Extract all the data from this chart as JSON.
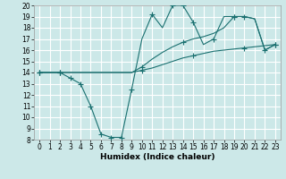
{
  "bg_color": "#cce8e8",
  "grid_color": "#ffffff",
  "line_color": "#1a7070",
  "xlabel": "Humidex (Indice chaleur)",
  "xlim": [
    -0.5,
    23.5
  ],
  "ylim": [
    8,
    20
  ],
  "xticks": [
    0,
    1,
    2,
    3,
    4,
    5,
    6,
    7,
    8,
    9,
    10,
    11,
    12,
    13,
    14,
    15,
    16,
    17,
    18,
    19,
    20,
    21,
    22,
    23
  ],
  "yticks": [
    8,
    9,
    10,
    11,
    12,
    13,
    14,
    15,
    16,
    17,
    18,
    19,
    20
  ],
  "line_bottom": {
    "x": [
      0,
      1,
      2,
      3,
      4,
      5,
      6,
      7,
      8,
      9,
      10,
      11,
      12,
      13,
      14,
      15,
      16,
      17,
      18,
      19,
      20,
      21,
      22,
      23
    ],
    "y": [
      14,
      14,
      14,
      14,
      14,
      14,
      14,
      14,
      14,
      14,
      14.2,
      14.4,
      14.7,
      15.0,
      15.3,
      15.5,
      15.7,
      15.9,
      16.0,
      16.1,
      16.2,
      16.3,
      16.4,
      16.5
    ],
    "markers_x": [
      0,
      2,
      10,
      15,
      20,
      23
    ],
    "markers_y": [
      14,
      14,
      14.2,
      15.5,
      16.2,
      16.5
    ]
  },
  "line_mid": {
    "x": [
      0,
      1,
      2,
      3,
      4,
      5,
      6,
      7,
      8,
      9,
      10,
      11,
      12,
      13,
      14,
      15,
      16,
      17,
      18,
      19,
      20,
      21,
      22,
      23
    ],
    "y": [
      14,
      14,
      14,
      14,
      14,
      14,
      14,
      14,
      14,
      14,
      14.5,
      15.2,
      15.8,
      16.3,
      16.7,
      17.0,
      17.2,
      17.5,
      18.0,
      19.0,
      19.0,
      18.8,
      16.0,
      16.5
    ],
    "markers_x": [
      0,
      2,
      10,
      14,
      19,
      23
    ],
    "markers_y": [
      14,
      14,
      14.5,
      16.7,
      19.0,
      16.5
    ]
  },
  "line_top": {
    "x": [
      0,
      1,
      2,
      3,
      4,
      5,
      6,
      7,
      8,
      9,
      10,
      11,
      12,
      13,
      14,
      15,
      16,
      17,
      18,
      19,
      20,
      21,
      22,
      23
    ],
    "y": [
      14,
      14,
      14,
      13.5,
      13.0,
      11.0,
      8.5,
      8.2,
      8.2,
      12.5,
      17.0,
      19.2,
      18.0,
      20.0,
      20.0,
      18.5,
      16.5,
      17.0,
      19.0,
      19.0,
      19.0,
      18.8,
      16.0,
      16.5
    ],
    "markers_x": [
      0,
      2,
      3,
      4,
      5,
      6,
      7,
      8,
      9,
      11,
      13,
      14,
      15,
      17,
      19,
      20,
      22,
      23
    ],
    "markers_y": [
      14,
      14,
      13.5,
      13.0,
      11.0,
      8.5,
      8.2,
      8.2,
      12.5,
      19.2,
      20.0,
      20.0,
      18.5,
      17.0,
      19.0,
      19.0,
      16.0,
      16.5
    ]
  },
  "tick_fontsize": 5.5,
  "xlabel_fontsize": 6.5
}
